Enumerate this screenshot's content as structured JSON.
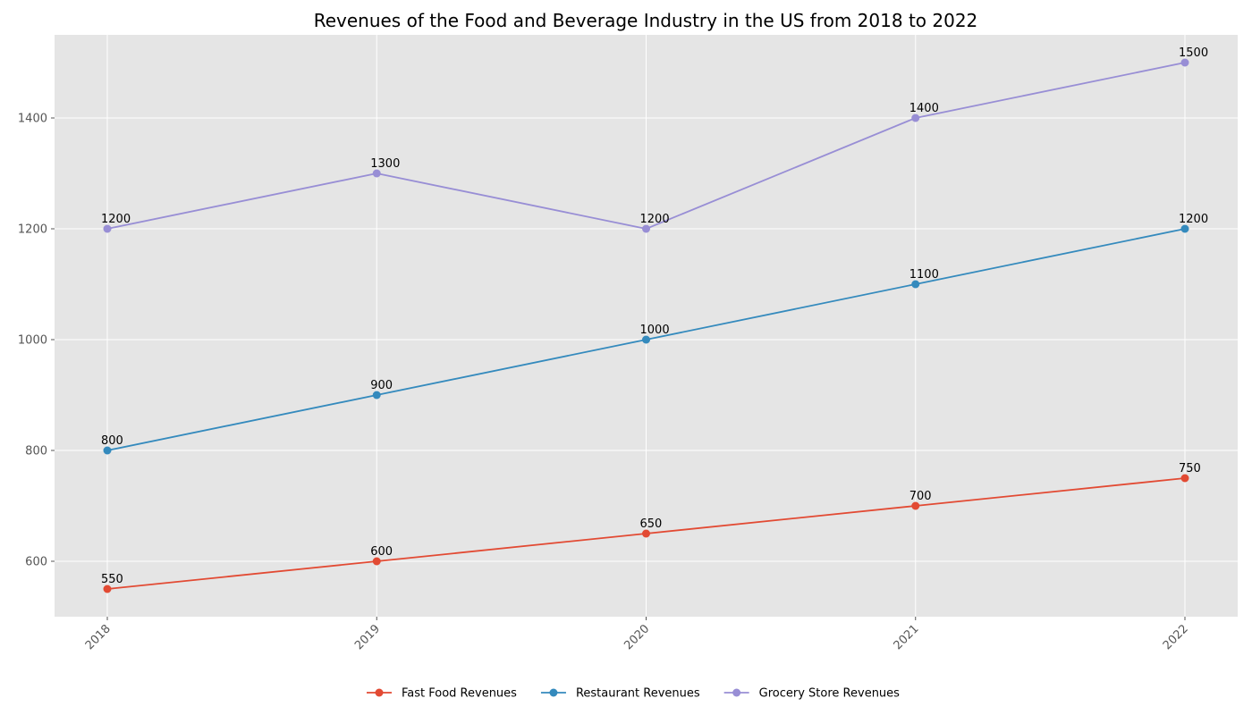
{
  "chart_data": {
    "type": "line",
    "title": "Revenues of the Food and Beverage Industry in the US from 2018 to 2022",
    "xlabel": "",
    "ylabel": "",
    "categories": [
      "2018",
      "2019",
      "2020",
      "2021",
      "2022"
    ],
    "ylim": [
      500,
      1550
    ],
    "yticks": [
      600,
      800,
      1000,
      1200,
      1400
    ],
    "grid": true,
    "legend_position": "bottom-center",
    "series": [
      {
        "name": "Fast Food Revenues",
        "color": "#E24A33",
        "values": [
          550,
          600,
          650,
          700,
          750
        ]
      },
      {
        "name": "Restaurant Revenues",
        "color": "#348ABD",
        "values": [
          800,
          900,
          1000,
          1100,
          1200
        ]
      },
      {
        "name": "Grocery Store Revenues",
        "color": "#988ED5",
        "values": [
          1200,
          1300,
          1200,
          1400,
          1500
        ]
      }
    ],
    "colors": {
      "plot_background": "#E5E5E5",
      "grid": "#FFFFFF",
      "tick_text": "#555555"
    }
  }
}
